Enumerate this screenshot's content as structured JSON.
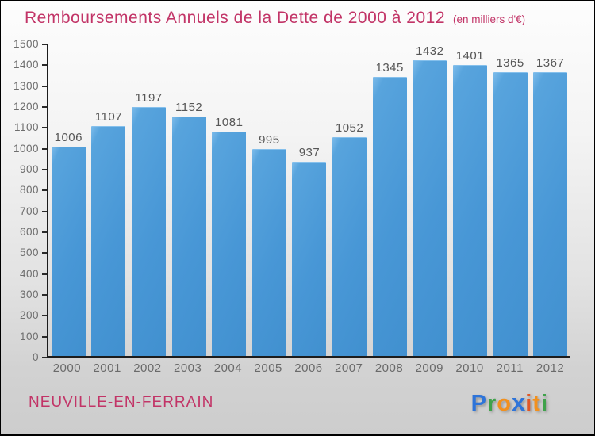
{
  "header": {
    "title": "Remboursements Annuels de la Dette de 2000 à 2012",
    "subtitle": "(en milliers d'€)"
  },
  "chart_data": {
    "type": "bar",
    "title": "Remboursements Annuels de la Dette de 2000 à 2012 (en milliers d'€)",
    "categories": [
      "2000",
      "2001",
      "2002",
      "2003",
      "2004",
      "2005",
      "2006",
      "2007",
      "2008",
      "2009",
      "2010",
      "2011",
      "2012"
    ],
    "values": [
      1006,
      1107,
      1197,
      1152,
      1081,
      995,
      937,
      1052,
      1345,
      1432,
      1401,
      1365,
      1367
    ],
    "xlabel": "",
    "ylabel": "",
    "ylim": [
      0,
      1500
    ],
    "yticks": [
      0,
      100,
      200,
      300,
      400,
      500,
      600,
      700,
      800,
      900,
      1000,
      1100,
      1200,
      1300,
      1400,
      1500
    ],
    "grid": false,
    "legend": "none",
    "bar_color": "#4796d6"
  },
  "footer": {
    "commune": "NEUVILLE-EN-FERRAIN",
    "logo": {
      "text": "Proxiti",
      "letters": [
        {
          "ch": "P",
          "color": "#2e74d9",
          "x_glyph": false
        },
        {
          "ch": "r",
          "color": "#3fa24b",
          "x_glyph": false
        },
        {
          "ch": "o",
          "color": "#f2901c",
          "x_glyph": false
        },
        {
          "ch": "x",
          "color": "#2e74d9",
          "x_glyph": true
        },
        {
          "ch": "i",
          "color": "#e25726",
          "x_glyph": false
        },
        {
          "ch": "t",
          "color": "#f2901c",
          "x_glyph": false
        },
        {
          "ch": "i",
          "color": "#3fa24b",
          "x_glyph": false
        }
      ]
    }
  },
  "colors": {
    "accent_pink": "#c23467",
    "bar_blue": "#4796d6",
    "axis_dark": "#1c1c1c",
    "tick_label_gray": "#6e6e6e",
    "value_label_gray": "#565656",
    "background_top": "#fdfdfd",
    "background_bottom": "#cdcdcd"
  }
}
